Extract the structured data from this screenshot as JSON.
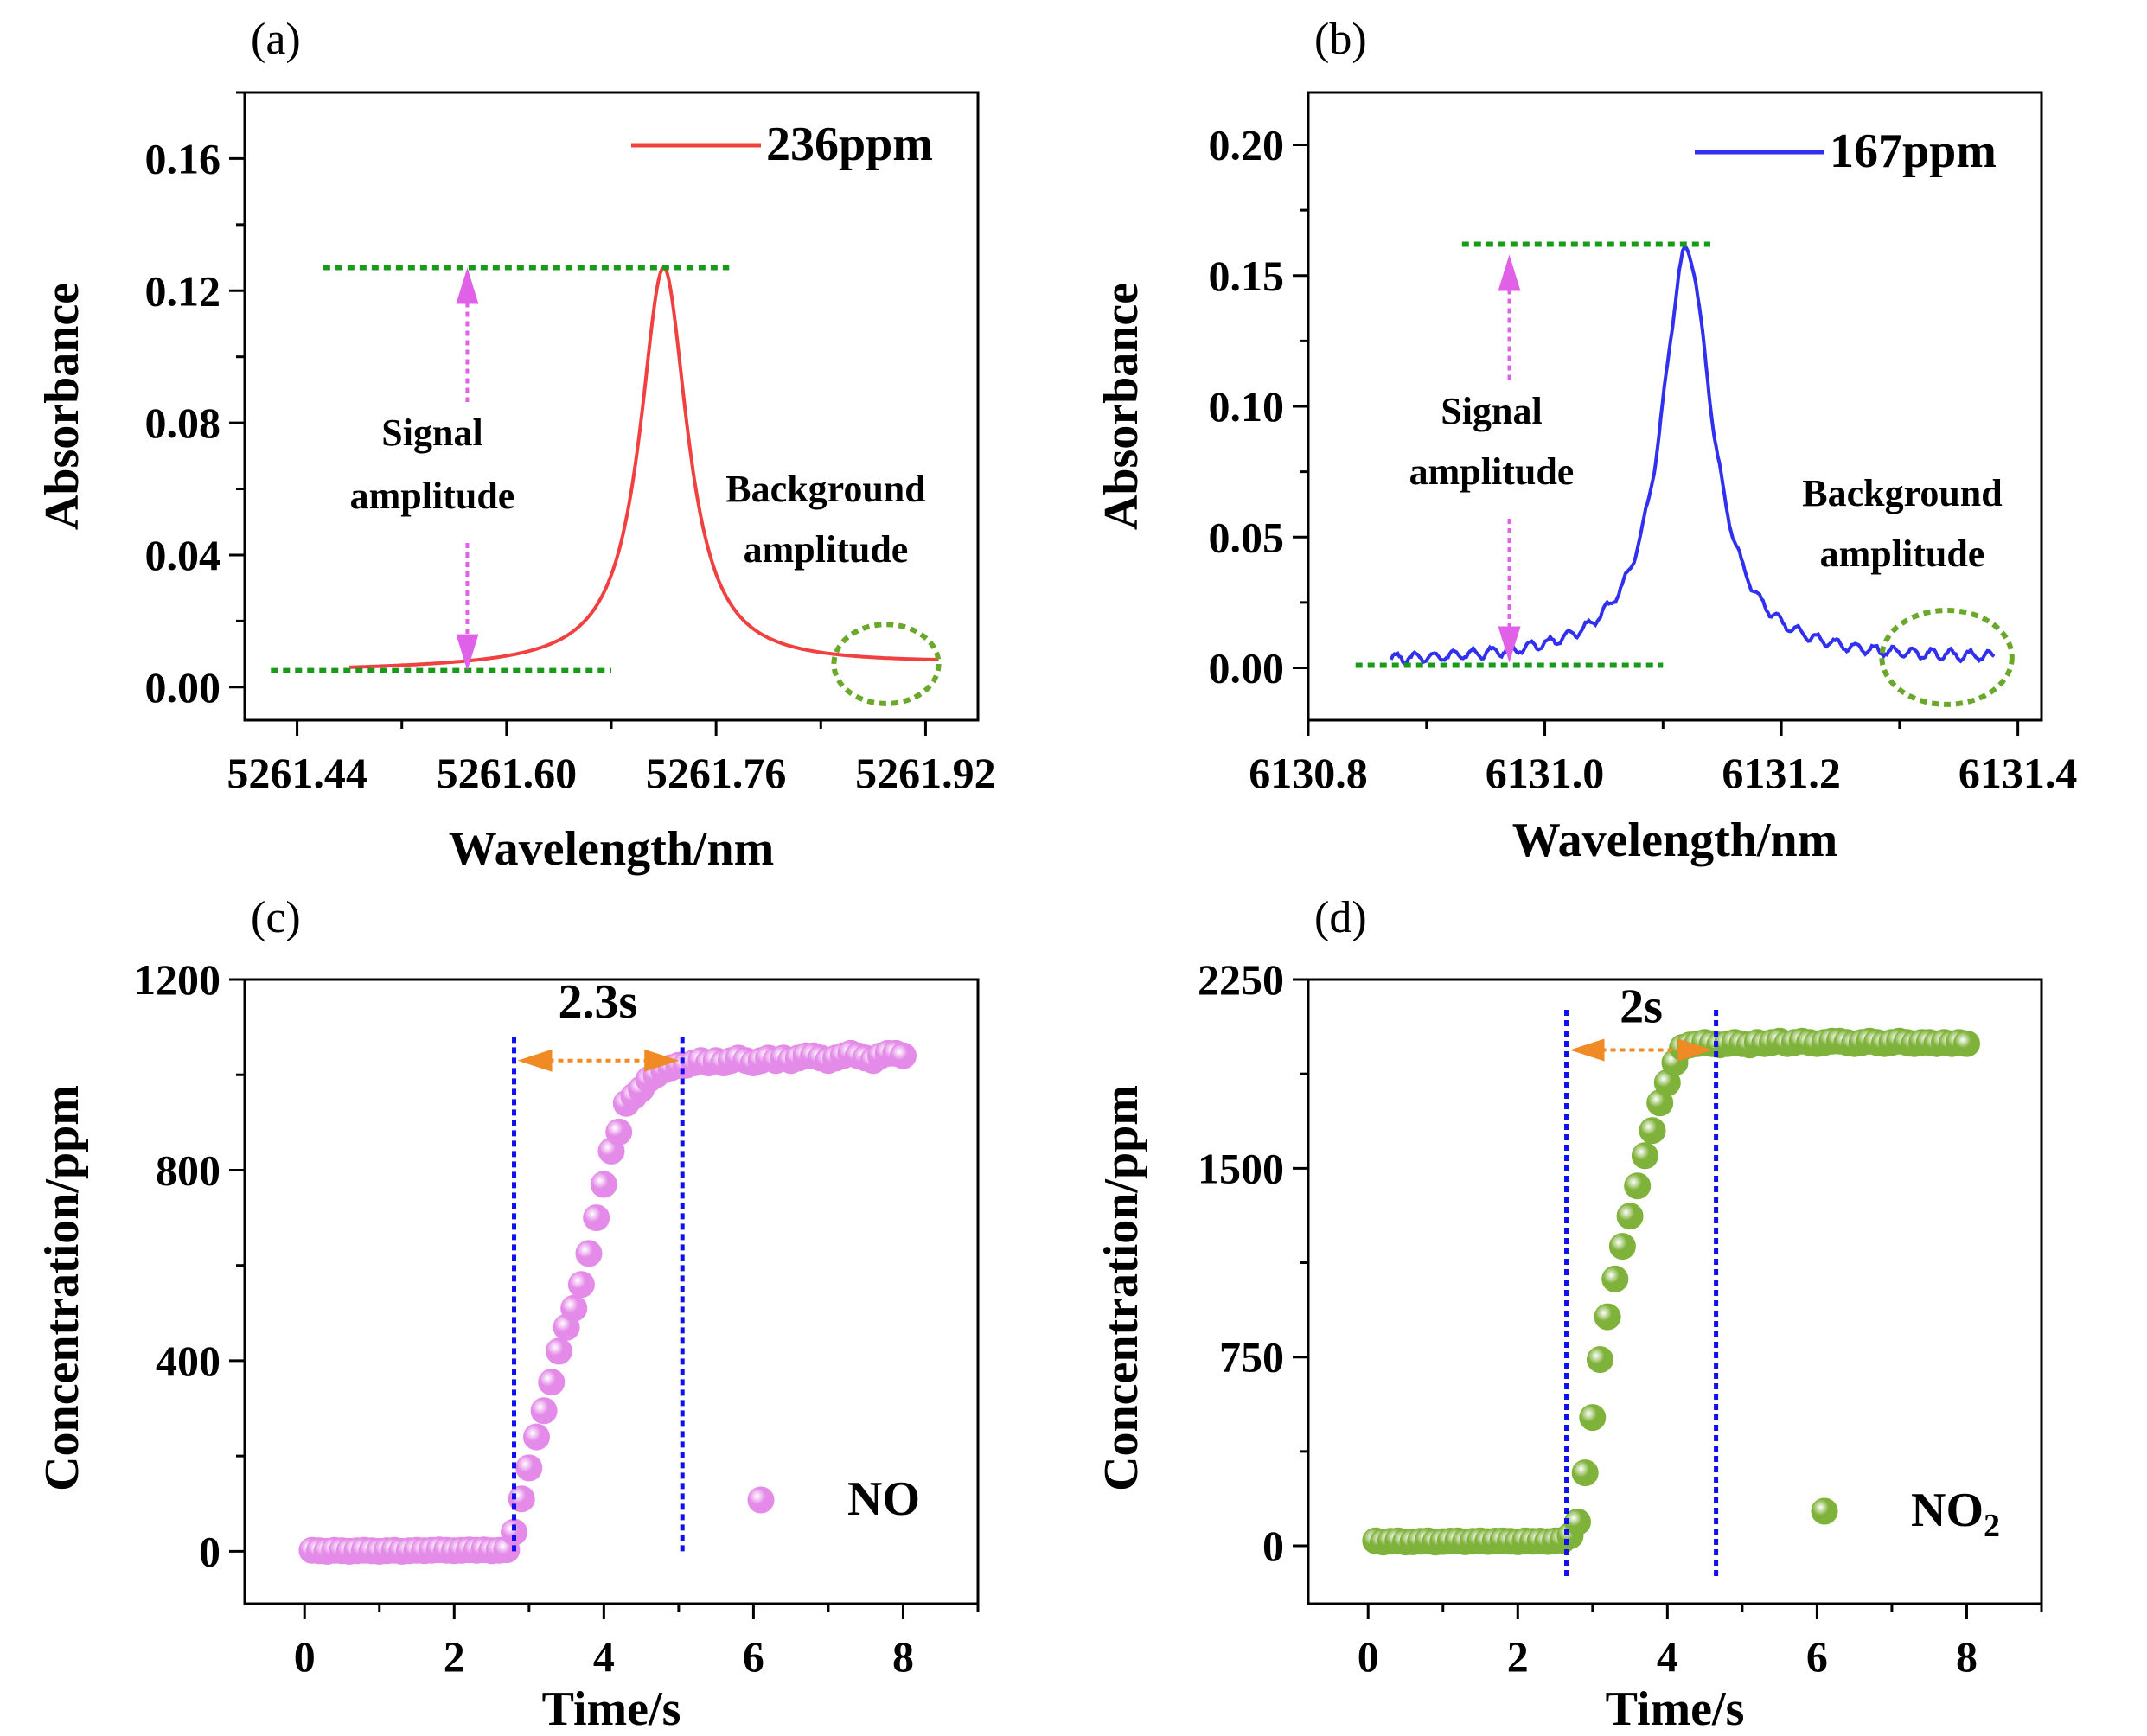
{
  "chart_data": [
    {
      "type": "line",
      "panel_label": "(a)",
      "xlabel": "Wavelength/nm",
      "ylabel": "Absorbance",
      "xlim": [
        5261.4,
        5261.96
      ],
      "ylim": [
        -0.01,
        0.18
      ],
      "xticks": [
        5261.44,
        5261.6,
        5261.76,
        5261.92
      ],
      "xtick_labels": [
        "5261.44",
        "5261.60",
        "5261.76",
        "5261.92"
      ],
      "yticks": [
        0.0,
        0.04,
        0.08,
        0.12,
        0.16
      ],
      "ytick_labels": [
        "0.00",
        "0.04",
        "0.08",
        "0.12",
        "0.16"
      ],
      "series": [
        {
          "name": "236ppm",
          "color": "#f04040",
          "model": {
            "type": "lorentzian",
            "center": 5261.72,
            "hwhm": 0.022,
            "peak": 0.127,
            "baseline": 0.005,
            "baseline_end": 0.007,
            "xmin": 5261.48,
            "xmax": 5261.93,
            "noise": 0.0
          }
        }
      ],
      "annotations": {
        "signal_label": [
          "Signal",
          "amplitude"
        ],
        "background_label": [
          "Background",
          "amplitude"
        ],
        "peak_line": {
          "y": 0.127,
          "x": [
            5261.46,
            5261.77
          ]
        },
        "base_line": {
          "y": 0.005,
          "x": [
            5261.42,
            5261.68
          ]
        },
        "arrow": {
          "x": 5261.57,
          "y_top": 0.127,
          "y_bottom": 0.005
        },
        "ellipse": {
          "cx": 5261.89,
          "cy": 0.007,
          "rx": 0.04,
          "ry": 0.012
        }
      }
    },
    {
      "type": "line",
      "panel_label": "(b)",
      "xlabel": "Wavelength/nm",
      "ylabel": "Absorbance",
      "xlim": [
        6130.8,
        6131.42
      ],
      "ylim": [
        -0.02,
        0.22
      ],
      "xticks": [
        6130.8,
        6131.0,
        6131.2,
        6131.4
      ],
      "xtick_labels": [
        "6130.8",
        "6131.0",
        "6131.2",
        "6131.4"
      ],
      "yticks": [
        0.0,
        0.05,
        0.1,
        0.15,
        0.2
      ],
      "ytick_labels": [
        "0.00",
        "0.05",
        "0.10",
        "0.15",
        "0.20"
      ],
      "series": [
        {
          "name": "167ppm",
          "color": "#3030ee",
          "model": {
            "type": "lorentzian",
            "center": 6131.12,
            "hwhm": 0.026,
            "peak": 0.16,
            "baseline": 0.002,
            "baseline_end": 0.003,
            "xmin": 6130.87,
            "xmax": 6131.38,
            "noise": 0.0018
          }
        }
      ],
      "annotations": {
        "signal_label": [
          "Signal",
          "amplitude"
        ],
        "background_label": [
          "Background",
          "amplitude"
        ],
        "peak_line": {
          "y": 0.162,
          "x": [
            6130.93,
            6131.14
          ]
        },
        "base_line": {
          "y": 0.001,
          "x": [
            6130.84,
            6131.1
          ]
        },
        "arrow": {
          "x": 6130.97,
          "y_top": 0.158,
          "y_bottom": 0.002
        },
        "ellipse": {
          "cx": 6131.34,
          "cy": 0.004,
          "rx": 0.055,
          "ry": 0.018
        }
      }
    },
    {
      "type": "scatter",
      "panel_label": "(c)",
      "xlabel": "Time/s",
      "ylabel": "Concentration/ppm",
      "xlim": [
        -0.8,
        9.0
      ],
      "ylim": [
        -110,
        1200
      ],
      "xticks": [
        0,
        2,
        4,
        6,
        8
      ],
      "xtick_labels": [
        "0",
        "2",
        "4",
        "6",
        "8"
      ],
      "yticks": [
        0,
        400,
        800,
        1200
      ],
      "ytick_labels": [
        "0",
        "400",
        "800",
        "1200"
      ],
      "series": [
        {
          "name": "NO",
          "color": "#e48ae8",
          "x": [
            0.1,
            0.2,
            0.3,
            0.4,
            0.5,
            0.6,
            0.7,
            0.8,
            0.9,
            1.0,
            1.1,
            1.2,
            1.3,
            1.4,
            1.5,
            1.6,
            1.7,
            1.8,
            1.9,
            2.0,
            2.1,
            2.2,
            2.3,
            2.4,
            2.5,
            2.6,
            2.7,
            2.8,
            2.9,
            3.0,
            3.1,
            3.2,
            3.3,
            3.4,
            3.5,
            3.6,
            3.7,
            3.8,
            3.9,
            4.0,
            4.1,
            4.2,
            4.3,
            4.4,
            4.5,
            4.6,
            4.7,
            4.8,
            4.9,
            5.0,
            5.1,
            5.2,
            5.3,
            5.4,
            5.5,
            5.6,
            5.7,
            5.8,
            5.9,
            6.0,
            6.1,
            6.2,
            6.3,
            6.4,
            6.5,
            6.6,
            6.7,
            6.8,
            6.9,
            7.0,
            7.1,
            7.2,
            7.3,
            7.4,
            7.5,
            7.6,
            7.7,
            7.8,
            7.9,
            8.0
          ],
          "y": [
            2,
            1,
            0,
            2,
            1,
            0,
            1,
            2,
            1,
            0,
            1,
            2,
            0,
            1,
            2,
            1,
            2,
            3,
            2,
            1,
            2,
            3,
            2,
            3,
            1,
            2,
            3,
            40,
            110,
            175,
            240,
            295,
            355,
            420,
            470,
            510,
            560,
            625,
            700,
            770,
            840,
            880,
            940,
            955,
            970,
            990,
            1000,
            1010,
            1015,
            1020,
            1020,
            1025,
            1030,
            1025,
            1030,
            1025,
            1030,
            1035,
            1030,
            1025,
            1030,
            1035,
            1030,
            1035,
            1030,
            1035,
            1040,
            1040,
            1035,
            1030,
            1035,
            1040,
            1045,
            1040,
            1035,
            1030,
            1040,
            1045,
            1045,
            1040
          ]
        }
      ],
      "annotations": {
        "vlines": [
          2.8,
          5.05
        ],
        "vline_y": [
          0,
          1085
        ],
        "arrow_y": 1030,
        "arrow_x": [
          2.8,
          5.05
        ],
        "label": "2.3s",
        "label_pos": {
          "x": 3.92,
          "y": 1120
        }
      }
    },
    {
      "type": "scatter",
      "panel_label": "(d)",
      "xlabel": "Time/s",
      "ylabel": "Concentration/ppm",
      "xlim": [
        -0.8,
        9.0
      ],
      "ylim": [
        -230,
        2250
      ],
      "xticks": [
        0,
        2,
        4,
        6,
        8
      ],
      "xtick_labels": [
        "0",
        "2",
        "4",
        "6",
        "8"
      ],
      "yticks": [
        0,
        750,
        1500,
        2250
      ],
      "ytick_labels": [
        "0",
        "750",
        "1500",
        "2250"
      ],
      "series": [
        {
          "name": "NO",
          "legend_sub": "2",
          "color": "#7fb23a",
          "x": [
            0.1,
            0.2,
            0.3,
            0.4,
            0.5,
            0.6,
            0.7,
            0.8,
            0.9,
            1.0,
            1.1,
            1.2,
            1.3,
            1.4,
            1.5,
            1.6,
            1.7,
            1.8,
            1.9,
            2.0,
            2.1,
            2.2,
            2.3,
            2.4,
            2.5,
            2.6,
            2.7,
            2.8,
            2.9,
            3.0,
            3.1,
            3.2,
            3.3,
            3.4,
            3.5,
            3.6,
            3.7,
            3.8,
            3.9,
            4.0,
            4.1,
            4.2,
            4.3,
            4.4,
            4.5,
            4.6,
            4.7,
            4.8,
            4.9,
            5.0,
            5.1,
            5.2,
            5.3,
            5.4,
            5.5,
            5.6,
            5.7,
            5.8,
            5.9,
            6.0,
            6.1,
            6.2,
            6.3,
            6.4,
            6.5,
            6.6,
            6.7,
            6.8,
            6.9,
            7.0,
            7.1,
            7.2,
            7.3,
            7.4,
            7.5,
            7.6,
            7.7,
            7.8,
            7.9,
            8.0
          ],
          "y": [
            20,
            15,
            18,
            20,
            15,
            16,
            18,
            20,
            15,
            17,
            19,
            20,
            16,
            18,
            20,
            17,
            19,
            20,
            18,
            16,
            20,
            18,
            19,
            17,
            20,
            22,
            40,
            95,
            290,
            510,
            740,
            910,
            1060,
            1190,
            1310,
            1430,
            1550,
            1650,
            1760,
            1840,
            1920,
            1980,
            1990,
            1995,
            2000,
            1995,
            1990,
            1995,
            2000,
            1995,
            1990,
            2000,
            1995,
            2000,
            2005,
            1995,
            2000,
            2005,
            2000,
            1995,
            2000,
            2005,
            2005,
            2000,
            1995,
            2000,
            2005,
            2000,
            1995,
            2000,
            2005,
            2000,
            1995,
            2000,
            2000,
            1995,
            2000,
            1995,
            2000,
            1995
          ]
        }
      ],
      "annotations": {
        "vlines": [
          2.65,
          4.65
        ],
        "vline_y": [
          -120,
          2130
        ],
        "arrow_y": 1970,
        "arrow_x": [
          2.65,
          4.65
        ],
        "label": "2s",
        "label_pos": {
          "x": 3.65,
          "y": 2080
        }
      }
    }
  ]
}
